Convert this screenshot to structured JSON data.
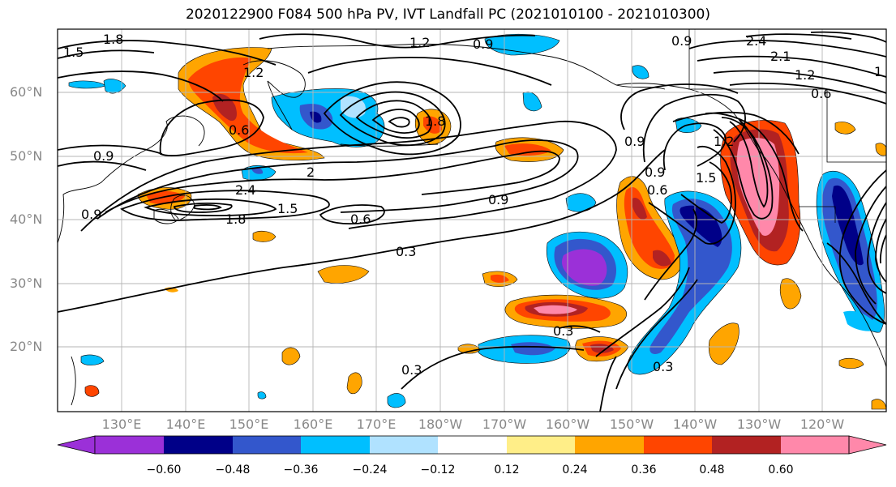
{
  "title": "2020122900 F084 500 hPa PV, IVT Landfall PC (2021010100 - 2021010300)",
  "lat_labels": [
    "60°N",
    "50°N",
    "40°N",
    "30°N",
    "20°N"
  ],
  "lon_labels": [
    "130°E",
    "140°E",
    "150°E",
    "160°E",
    "170°E",
    "180°W",
    "170°W",
    "160°W",
    "150°W",
    "140°W",
    "130°W",
    "120°W"
  ],
  "colorbar": {
    "ticks": [
      "−0.60",
      "−0.48",
      "−0.36",
      "−0.24",
      "−0.12",
      "0.12",
      "0.24",
      "0.36",
      "0.48",
      "0.60"
    ],
    "colors": [
      "#9b30d8",
      "#000088",
      "#3357cc",
      "#00bfff",
      "#b0e2ff",
      "#ffffff",
      "#ffee88",
      "#ffa500",
      "#ff4500",
      "#b22222",
      "#ff88aa"
    ]
  },
  "contour_labels": [
    {
      "text": "1.8"
    },
    {
      "text": "1.5"
    },
    {
      "text": "1.2"
    },
    {
      "text": "0.9"
    },
    {
      "text": "0.9"
    },
    {
      "text": "2.4"
    },
    {
      "text": "2.1"
    },
    {
      "text": "1.2"
    },
    {
      "text": "1"
    },
    {
      "text": "0.6"
    },
    {
      "text": "0.6"
    },
    {
      "text": "0.9"
    },
    {
      "text": "0.6"
    },
    {
      "text": "0.9"
    },
    {
      "text": "1.5"
    },
    {
      "text": "0.9"
    },
    {
      "text": "2.4"
    },
    {
      "text": "1.8"
    },
    {
      "text": "1.5"
    },
    {
      "text": "0.6"
    },
    {
      "text": "0.9"
    },
    {
      "text": "0.3"
    },
    {
      "text": "0.3"
    },
    {
      "text": "0.3"
    },
    {
      "text": "0.3"
    },
    {
      "text": "1.8"
    },
    {
      "text": "1.2"
    },
    {
      "text": "1.2"
    },
    {
      "text": "2"
    },
    {
      "text": "0.9"
    }
  ]
}
